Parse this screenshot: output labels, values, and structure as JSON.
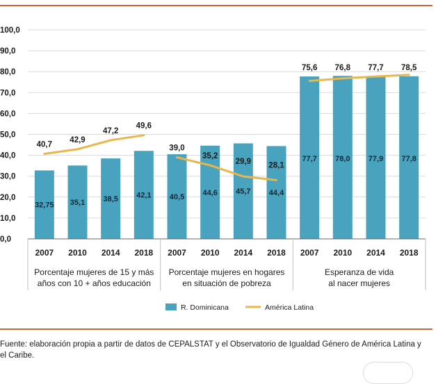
{
  "chart_data": {
    "type": "bar",
    "title": "",
    "ylim": [
      0,
      100
    ],
    "y_ticks": [
      "0,0",
      "10,0",
      "20,0",
      "30,0",
      "40,0",
      "50,0",
      "60,0",
      "70,0",
      "80,0",
      "90,0",
      "100,0"
    ],
    "grid": true,
    "legend_position": "bottom-center",
    "groups": [
      {
        "label_line1": "Porcentaje mujeres de 15 y más",
        "label_line2": "años con 10 + años educación",
        "years": [
          "2007",
          "2010",
          "2014",
          "2018"
        ],
        "bar_values": [
          32.75,
          35.1,
          38.5,
          42.1
        ],
        "bar_labels": [
          "32,75",
          "35,1",
          "38,5",
          "42,1"
        ],
        "line_values": [
          40.7,
          42.9,
          47.2,
          49.6
        ],
        "line_labels": [
          "40,7",
          "42,9",
          "47,2",
          "49,6"
        ]
      },
      {
        "label_line1": "Porcentaje mujeres en hogares",
        "label_line2": "en situación de pobreza",
        "years": [
          "2007",
          "2010",
          "2014",
          "2018"
        ],
        "bar_values": [
          40.5,
          44.6,
          45.7,
          44.4
        ],
        "bar_labels": [
          "40,5",
          "44,6",
          "45,7",
          "44,4"
        ],
        "line_values": [
          39.0,
          35.2,
          29.9,
          28.1
        ],
        "line_labels": [
          "39,0",
          "35,2",
          "29,9",
          "28,1"
        ]
      },
      {
        "label_line1": "Esperanza de vida",
        "label_line2": "al nacer mujeres",
        "years": [
          "2007",
          "2010",
          "2014",
          "2018"
        ],
        "bar_values": [
          77.7,
          78.0,
          77.9,
          77.8
        ],
        "bar_labels": [
          "77,7",
          "78,0",
          "77,9",
          "77,8"
        ],
        "line_values": [
          75.6,
          76.8,
          77.7,
          78.5
        ],
        "line_labels": [
          "75,6",
          "76,8",
          "77,7",
          "78,5"
        ]
      }
    ],
    "series": [
      {
        "name": "R. Dominicana",
        "type": "bar",
        "color": "#4aa3be"
      },
      {
        "name": "América Latina",
        "type": "line",
        "color": "#e8b64c"
      }
    ]
  },
  "source_text": "Fuente: elaboración propia a partir de datos de CEPALSTAT y el Observatorio de Igualdad Género de América Latina y el Caribe.",
  "colors": {
    "accent_rule": "#c7673a",
    "grid": "#d9d9d9",
    "axis": "#666666"
  }
}
